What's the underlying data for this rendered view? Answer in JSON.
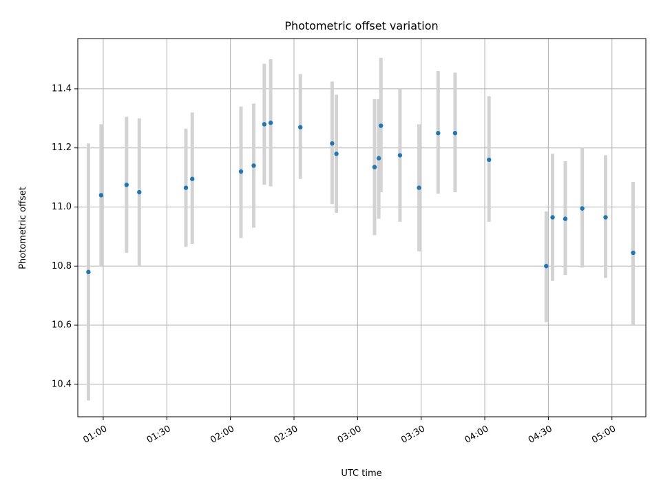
{
  "chart_data": {
    "type": "scatter",
    "title": "Photometric offset variation",
    "xlabel": "UTC time",
    "ylabel": "Photometric offset",
    "x_tick_labels": [
      "01:00",
      "01:30",
      "02:00",
      "02:30",
      "03:00",
      "03:30",
      "04:00",
      "04:30",
      "05:00"
    ],
    "y_tick_labels": [
      "10.4",
      "10.6",
      "10.8",
      "11.0",
      "11.2",
      "11.4"
    ],
    "xlim": [
      "00:48",
      "05:16"
    ],
    "ylim": [
      10.29,
      11.57
    ],
    "grid": true,
    "colors": {
      "point": "#1f77b4",
      "errorbar": "#d3d3d3",
      "grid": "#b0b0b0"
    },
    "series": [
      {
        "points": [
          {
            "x": "00:53",
            "y": 10.78,
            "low": 10.345,
            "high": 11.215
          },
          {
            "x": "00:59",
            "y": 11.04,
            "low": 10.8,
            "high": 11.28
          },
          {
            "x": "01:11",
            "y": 11.075,
            "low": 10.845,
            "high": 11.305
          },
          {
            "x": "01:17",
            "y": 11.05,
            "low": 10.8,
            "high": 11.3
          },
          {
            "x": "01:39",
            "y": 11.065,
            "low": 10.865,
            "high": 11.265
          },
          {
            "x": "01:42",
            "y": 11.095,
            "low": 10.875,
            "high": 11.32
          },
          {
            "x": "02:05",
            "y": 11.12,
            "low": 10.895,
            "high": 11.34
          },
          {
            "x": "02:11",
            "y": 11.14,
            "low": 10.93,
            "high": 11.35
          },
          {
            "x": "02:16",
            "y": 11.28,
            "low": 11.075,
            "high": 11.485
          },
          {
            "x": "02:19",
            "y": 11.285,
            "low": 11.07,
            "high": 11.5
          },
          {
            "x": "02:33",
            "y": 11.27,
            "low": 11.095,
            "high": 11.45
          },
          {
            "x": "02:48",
            "y": 11.215,
            "low": 11.01,
            "high": 11.425
          },
          {
            "x": "02:50",
            "y": 11.18,
            "low": 10.98,
            "high": 11.38
          },
          {
            "x": "03:08",
            "y": 11.135,
            "low": 10.905,
            "high": 11.365
          },
          {
            "x": "03:10",
            "y": 11.165,
            "low": 10.96,
            "high": 11.365
          },
          {
            "x": "03:11",
            "y": 11.275,
            "low": 11.05,
            "high": 11.505
          },
          {
            "x": "03:20",
            "y": 11.175,
            "low": 10.95,
            "high": 11.4
          },
          {
            "x": "03:29",
            "y": 11.065,
            "low": 10.85,
            "high": 11.28
          },
          {
            "x": "03:38",
            "y": 11.25,
            "low": 11.045,
            "high": 11.46
          },
          {
            "x": "03:46",
            "y": 11.25,
            "low": 11.05,
            "high": 11.455
          },
          {
            "x": "04:02",
            "y": 11.16,
            "low": 10.95,
            "high": 11.375
          },
          {
            "x": "04:29",
            "y": 10.8,
            "low": 10.61,
            "high": 10.985
          },
          {
            "x": "04:32",
            "y": 10.965,
            "low": 10.75,
            "high": 11.18
          },
          {
            "x": "04:38",
            "y": 10.96,
            "low": 10.77,
            "high": 11.155
          },
          {
            "x": "04:46",
            "y": 10.995,
            "low": 10.795,
            "high": 11.2
          },
          {
            "x": "04:57",
            "y": 10.965,
            "low": 10.76,
            "high": 11.175
          },
          {
            "x": "05:10",
            "y": 10.845,
            "low": 10.6,
            "high": 11.085
          }
        ]
      }
    ]
  }
}
